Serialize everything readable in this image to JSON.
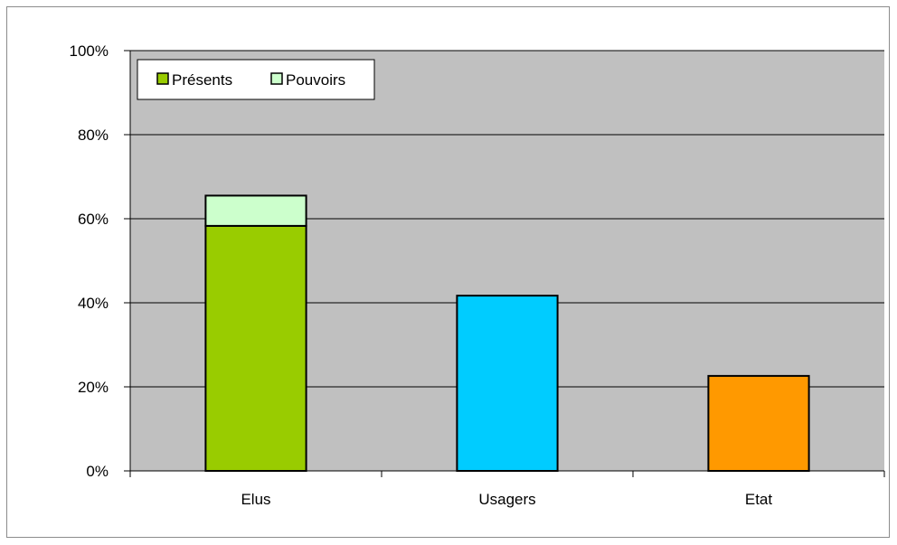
{
  "chart_data": {
    "type": "bar",
    "stacked": true,
    "categories": [
      "Elus",
      "Usagers",
      "Etat"
    ],
    "series": [
      {
        "name": "Présents",
        "values": [
          58.3,
          41.7,
          22.6
        ],
        "point_colors": [
          "#99cc00",
          "#00ccff",
          "#ff9900"
        ]
      },
      {
        "name": "Pouvoirs",
        "values": [
          7.2,
          0,
          0
        ],
        "point_colors": [
          "#ccffcc",
          "#ccffcc",
          "#ccffcc"
        ]
      }
    ],
    "legend": {
      "position": "top-left",
      "entries": [
        {
          "label": "Présents",
          "color": "#99cc00"
        },
        {
          "label": "Pouvoirs",
          "color": "#ccffcc"
        }
      ]
    },
    "ylim": [
      0,
      100
    ],
    "y_ticks": [
      0,
      20,
      40,
      60,
      80,
      100
    ],
    "y_tick_labels": [
      "0%",
      "20%",
      "40%",
      "60%",
      "80%",
      "100%"
    ],
    "grid": true,
    "plot_background": "#c0c0c0",
    "title": "",
    "xlabel": "",
    "ylabel": ""
  }
}
